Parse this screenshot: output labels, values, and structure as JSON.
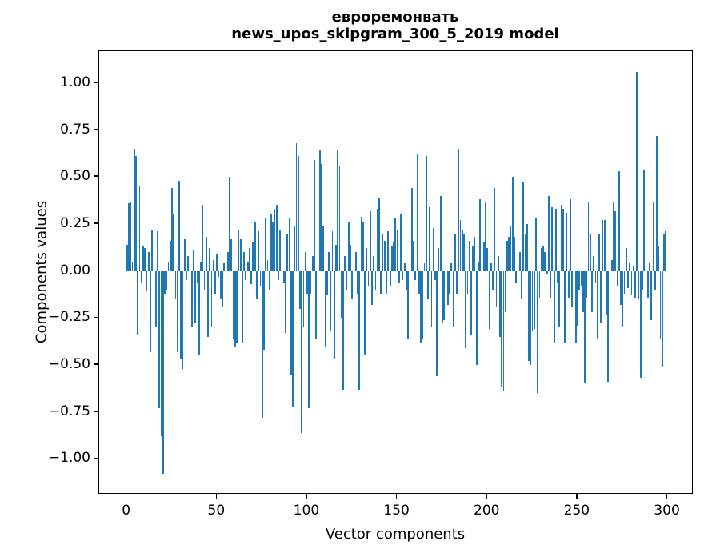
{
  "figure": {
    "title": "евроремонвать",
    "subtitle": "news_upos_skipgram_300_5_2019 model"
  },
  "chart_data": {
    "type": "bar",
    "title": "евроремонвать",
    "subtitle": "news_upos_skipgram_300_5_2019 model",
    "xlabel": "Vector components",
    "ylabel": "Components values",
    "bar_color": "#1f77b4",
    "axis_color": "#000000",
    "grid": false,
    "legend": null,
    "xlim": [
      -15.4,
      314.4
    ],
    "ylim": [
      -1.19,
      1.17
    ],
    "x_start": 0,
    "xticks": {
      "values": [
        0,
        50,
        100,
        150,
        200,
        250,
        300
      ],
      "labels": [
        "0",
        "50",
        "100",
        "150",
        "200",
        "250",
        "300"
      ]
    },
    "yticks": {
      "values": [
        -1.0,
        -0.75,
        -0.5,
        -0.25,
        0.0,
        0.25,
        0.5,
        0.75,
        1.0
      ],
      "labels": [
        "−1.00",
        "−0.75",
        "−0.50",
        "−0.25",
        "0.00",
        "0.25",
        "0.50",
        "0.75",
        "1.00"
      ]
    },
    "values": [
      0.14,
      0.36,
      0.37,
      0.05,
      0.65,
      0.61,
      -0.34,
      0.45,
      -0.06,
      0.13,
      0.12,
      -0.11,
      0.1,
      -0.43,
      0.22,
      -0.08,
      -0.3,
      0.21,
      -0.73,
      -0.88,
      -1.08,
      -0.12,
      -0.1,
      0.05,
      0.16,
      0.44,
      0.3,
      -0.15,
      -0.43,
      0.48,
      -0.47,
      -0.52,
      0.17,
      -0.05,
      0.08,
      -0.25,
      -0.3,
      0.11,
      -0.28,
      -0.06,
      -0.45,
      0.05,
      0.35,
      -0.1,
      0.18,
      -0.35,
      0.12,
      -0.3,
      0.06,
      -0.12,
      0.09,
      -0.03,
      -0.15,
      -0.19,
      0.04,
      -0.05,
      0.1,
      0.5,
      0.17,
      -0.36,
      -0.4,
      -0.38,
      0.22,
      0.17,
      -0.38,
      0.1,
      -0.05,
      0.05,
      0.12,
      -0.07,
      0.15,
      0.26,
      -0.15,
      0.21,
      -0.08,
      -0.78,
      -0.42,
      0.28,
      0.06,
      -0.1,
      0.3,
      0.26,
      0.33,
      0.35,
      -0.05,
      0.22,
      0.41,
      -0.06,
      -0.33,
      0.2,
      0.28,
      -0.55,
      -0.72,
      0.24,
      0.68,
      0.61,
      -0.2,
      -0.86,
      -0.3,
      0.1,
      -0.12,
      -0.73,
      -0.12,
      0.08,
      0.59,
      -0.36,
      0.05,
      0.64,
      0.57,
      0.24,
      -0.4,
      -0.13,
      0.1,
      -0.32,
      0.21,
      -0.47,
      0.14,
      0.64,
      0.56,
      -0.25,
      -0.63,
      0.08,
      -0.1,
      0.26,
      0.14,
      -0.15,
      -0.3,
      0.1,
      -0.12,
      -0.63,
      0.29,
      0.26,
      -0.45,
      0.12,
      -0.08,
      0.32,
      -0.18,
      0.08,
      -0.1,
      0.33,
      0.39,
      -0.12,
      0.2,
      0.16,
      -0.12,
      0.21,
      -0.08,
      0.13,
      0.15,
      0.28,
      0.22,
      -0.06,
      0.3,
      -0.05,
      0.04,
      -0.1,
      -0.36,
      0.12,
      0.44,
      0.16,
      -0.05,
      0.62,
      -0.12,
      -0.38,
      -0.36,
      0.04,
      0.61,
      -0.15,
      0.34,
      -0.3,
      0.23,
      -0.05,
      -0.56,
      0.12,
      0.4,
      -0.28,
      -0.26,
      0.26,
      -0.18,
      -0.12,
      0.04,
      -0.3,
      0.2,
      -0.12,
      0.65,
      0.27,
      0.22,
      0.2,
      -0.41,
      -0.12,
      0.16,
      -0.34,
      0.13,
      0.18,
      -0.5,
      0.05,
      0.38,
      0.31,
      0.15,
      0.37,
      0.12,
      -0.31,
      0.04,
      -0.1,
      0.44,
      -0.19,
      0.08,
      -0.35,
      -0.62,
      -0.64,
      -0.22,
      0.16,
      0.18,
      0.24,
      0.5,
      0.18,
      -0.06,
      -0.11,
      0.1,
      -0.15,
      0.47,
      0.2,
      0.25,
      -0.48,
      -0.5,
      -0.32,
      -0.31,
      0.28,
      -0.65,
      -0.14,
      0.12,
      0.13,
      0.1,
      -0.02,
      0.4,
      -0.14,
      0.34,
      -0.38,
      0.33,
      -0.06,
      -0.3,
      0.35,
      0.33,
      -0.38,
      0.31,
      -0.14,
      0.38,
      -0.19,
      -0.14,
      -0.38,
      -0.29,
      -0.1,
      -0.08,
      -0.22,
      -0.6,
      -0.14,
      0.37,
      0.2,
      -0.22,
      0.08,
      -0.06,
      -0.36,
      0.2,
      -0.28,
      0.27,
      0.27,
      -0.23,
      -0.59,
      -0.06,
      0.06,
      0.37,
      0.32,
      -0.08,
      0.53,
      -0.18,
      -0.3,
      -0.12,
      0.12,
      -0.09,
      0.04,
      -0.13,
      0.03,
      -0.14,
      1.06,
      -0.15,
      -0.57,
      -0.1,
      0.54,
      0.04,
      -0.14,
      0.04,
      -0.26,
      0.37,
      -0.1,
      0.72,
      0.13,
      -0.36,
      -0.51,
      0.2,
      0.21
    ]
  }
}
